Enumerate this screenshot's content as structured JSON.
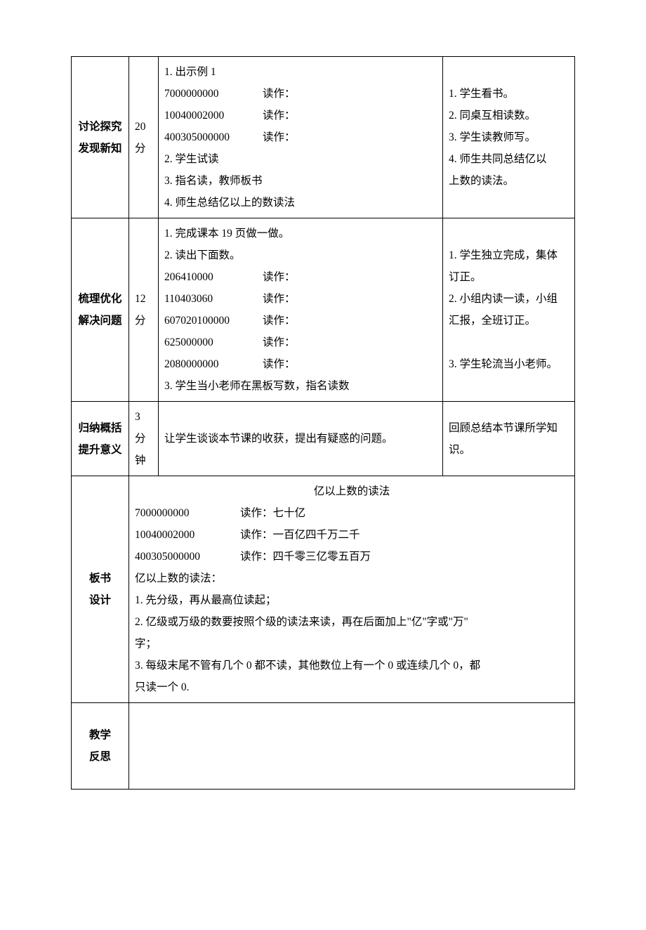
{
  "rows": {
    "r1": {
      "label_l1": "讨论探究",
      "label_l2": "发现新知",
      "time": "20 分",
      "content": {
        "l1": "1. 出示例 1",
        "n1": "7000000000",
        "r1": "读作：",
        "n2": "10040002000",
        "r2": "读作：",
        "n3": "400305000000",
        "r3": "读作：",
        "l2": "2. 学生试读",
        "l3": "3. 指名读，教师板书",
        "l4": "4. 师生总结亿以上的数读法"
      },
      "right": {
        "l1": "1. 学生看书。",
        "l2": "2. 同桌互相读数。",
        "l3": "3. 学生读教师写。",
        "l4": "4. 师生共同总结亿以",
        "l5": "上数的读法。"
      }
    },
    "r2": {
      "label_l1": "梳理优化",
      "label_l2": "解决问题",
      "time": "12 分",
      "content": {
        "l1": "1. 完成课本 19 页做一做。",
        "l2": "2. 读出下面数。",
        "n1": "206410000",
        "r1": "读作：",
        "n2": "110403060",
        "r2": "读作：",
        "n3": "607020100000",
        "r3": "读作：",
        "n4": "625000000",
        "r4": "读作：",
        "n5": "2080000000",
        "r5": "读作：",
        "l3": "3. 学生当小老师在黑板写数，指名读数"
      },
      "right": {
        "l1": "1. 学生独立完成，集体",
        "l2": "订正。",
        "l3": "2. 小组内读一读，小组",
        "l4": "汇报，全班订正。",
        "gap": "　",
        "l5": "3. 学生轮流当小老师。"
      }
    },
    "r3": {
      "label_l1": "归纳概括",
      "label_l2": "提升意义",
      "time": "3 分钟",
      "content": "让学生谈谈本节课的收获，提出有疑惑的问题。",
      "right": "回顾总结本节课所学知识。"
    },
    "r4": {
      "label_l1": "板书",
      "label_l2": "设计",
      "title": "亿以上数的读法",
      "n1": "7000000000",
      "v1": "读作：七十亿",
      "n2": "10040002000",
      "v2": "读作：一百亿四千万二千",
      "n3": "400305000000",
      "v3": "读作：四千零三亿零五百万",
      "sub": "亿以上数的读法：",
      "p1": "1. 先分级，再从最高位读起；",
      "p2a": "2. 亿级或万级的数要按照个级的读法来读，再在后面加上\"亿\"字或\"万\"",
      "p2b": "字；",
      "p3a": "3. 每级末尾不管有几个 0 都不读，其他数位上有一个 0 或连续几个 0，都",
      "p3b": "只读一个 0."
    },
    "r5": {
      "label_l1": "教学",
      "label_l2": "反思"
    }
  }
}
